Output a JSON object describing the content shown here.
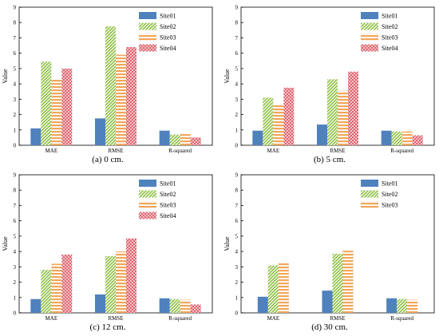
{
  "figure": {
    "colors": {
      "Site01": "#4f81bd",
      "Site02": "#8fc043",
      "Site03": "#f2a65a",
      "Site04": "#e06570"
    },
    "patterns": {
      "Site01": "solid",
      "Site02": "diagonal-forward",
      "Site03": "horizontal",
      "Site04": "crosshatch"
    }
  },
  "chart_data": [
    {
      "type": "bar",
      "caption": "(a) 0 cm.",
      "ylabel": "Value",
      "ylim": [
        0,
        9
      ],
      "yticks": [
        "0",
        "1",
        "2",
        "3",
        "4",
        "5",
        "6",
        "7",
        "8",
        "9"
      ],
      "categories": [
        "MAE",
        "RMSE",
        "R-squared"
      ],
      "legend_position": "top-right",
      "series": [
        {
          "name": "Site01",
          "values": [
            1.1,
            1.75,
            0.95
          ]
        },
        {
          "name": "Site02",
          "values": [
            5.45,
            7.75,
            0.7
          ]
        },
        {
          "name": "Site03",
          "values": [
            4.3,
            5.9,
            0.8
          ]
        },
        {
          "name": "Site04",
          "values": [
            5.0,
            6.4,
            0.5
          ]
        }
      ]
    },
    {
      "type": "bar",
      "caption": "(b) 5 cm.",
      "ylabel": "Value",
      "ylim": [
        0,
        9
      ],
      "yticks": [
        "0",
        "1",
        "2",
        "3",
        "4",
        "5",
        "6",
        "7",
        "8",
        "9"
      ],
      "categories": [
        "MAE",
        "RMSE",
        "R-squared"
      ],
      "legend_position": "top-right",
      "series": [
        {
          "name": "Site01",
          "values": [
            0.95,
            1.35,
            0.95
          ]
        },
        {
          "name": "Site02",
          "values": [
            3.1,
            4.3,
            0.9
          ]
        },
        {
          "name": "Site03",
          "values": [
            2.7,
            3.55,
            0.9
          ]
        },
        {
          "name": "Site04",
          "values": [
            3.75,
            4.8,
            0.65
          ]
        }
      ]
    },
    {
      "type": "bar",
      "caption": "(c) 12 cm.",
      "ylabel": "Value",
      "ylim": [
        0,
        9
      ],
      "yticks": [
        "0",
        "1",
        "2",
        "3",
        "4",
        "5",
        "6",
        "7",
        "8",
        "9"
      ],
      "categories": [
        "MAE",
        "RMSE",
        "R-squared"
      ],
      "legend_position": "top-right",
      "series": [
        {
          "name": "Site01",
          "values": [
            0.9,
            1.2,
            0.95
          ]
        },
        {
          "name": "Site02",
          "values": [
            2.8,
            3.7,
            0.9
          ]
        },
        {
          "name": "Site03",
          "values": [
            3.2,
            4.0,
            0.85
          ]
        },
        {
          "name": "Site04",
          "values": [
            3.8,
            4.85,
            0.55
          ]
        }
      ]
    },
    {
      "type": "bar",
      "caption": "(d) 30 cm.",
      "ylabel": "Value",
      "ylim": [
        0,
        9
      ],
      "yticks": [
        "0",
        "1",
        "2",
        "3",
        "4",
        "5",
        "6",
        "7",
        "8",
        "9"
      ],
      "categories": [
        "MAE",
        "RMSE",
        "R-squared"
      ],
      "legend_position": "top-right",
      "series": [
        {
          "name": "Site01",
          "values": [
            1.05,
            1.45,
            0.95
          ]
        },
        {
          "name": "Site02",
          "values": [
            3.1,
            3.85,
            0.9
          ]
        },
        {
          "name": "Site03",
          "values": [
            3.25,
            4.05,
            0.85
          ]
        }
      ]
    }
  ]
}
